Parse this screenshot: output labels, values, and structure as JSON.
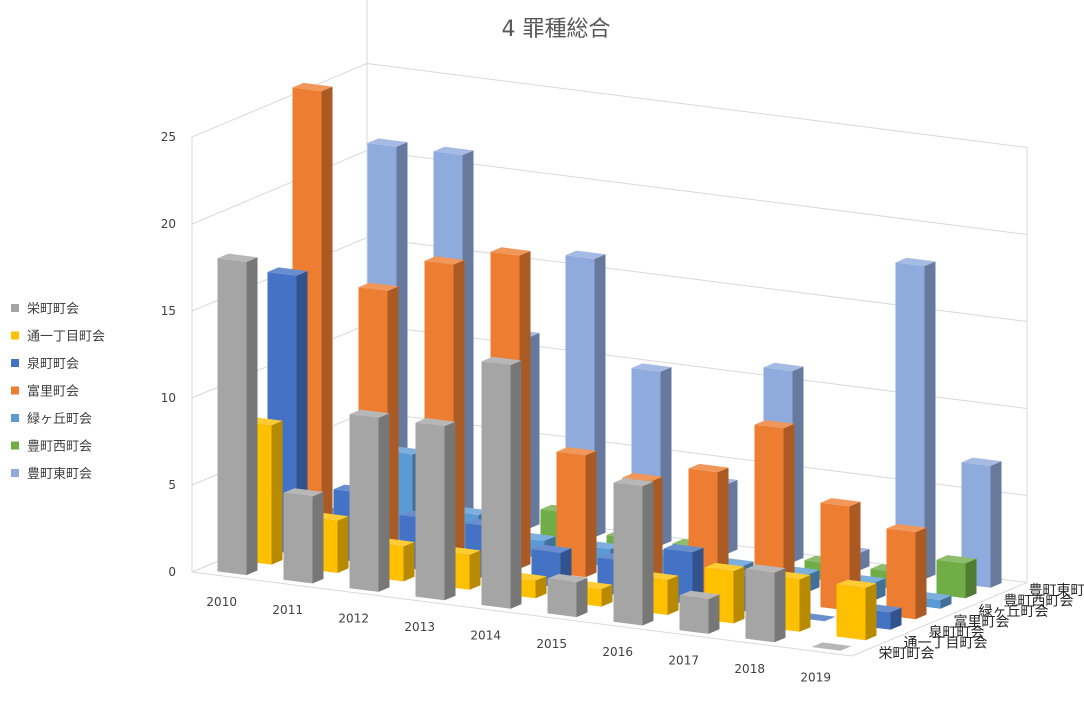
{
  "chart_data": {
    "type": "bar",
    "subtype": "3d-column",
    "title": "4 罪種総合",
    "categories": [
      "2010",
      "2011",
      "2012",
      "2013",
      "2014",
      "2015",
      "2016",
      "2017",
      "2018",
      "2019"
    ],
    "series": [
      {
        "name": "栄町町会",
        "color": "#a5a5a5",
        "values": [
          18,
          5,
          10,
          10,
          14,
          2,
          8,
          2,
          4,
          0
        ]
      },
      {
        "name": "通一丁目町会",
        "color": "#ffc000",
        "values": [
          8,
          3,
          2,
          2,
          1,
          1,
          2,
          3,
          3,
          3
        ]
      },
      {
        "name": "泉町町会",
        "color": "#4472c4",
        "values": [
          16,
          4,
          3,
          3,
          2,
          2,
          3,
          2,
          0,
          1
        ]
      },
      {
        "name": "富里町会",
        "color": "#ed7d31",
        "values": [
          26,
          15,
          17,
          18,
          7,
          6,
          7,
          10,
          6,
          5
        ]
      },
      {
        "name": "緑ヶ丘町会",
        "color": "#5b9bd5",
        "values": [
          1,
          5,
          2,
          1,
          1,
          1,
          1,
          1,
          1,
          0.5
        ]
      },
      {
        "name": "豊町西町会",
        "color": "#70ad47",
        "values": [
          1,
          1,
          1,
          2,
          1,
          1,
          0,
          1,
          1,
          2
        ]
      },
      {
        "name": "豊町東町会",
        "color": "#8faadc",
        "values": [
          21,
          21,
          11,
          16,
          10,
          4,
          11,
          1,
          18,
          7
        ]
      }
    ],
    "yticks": [
      0,
      5,
      10,
      15,
      20,
      25
    ],
    "ylim": [
      0,
      25
    ],
    "legend": "left",
    "grid": true
  }
}
